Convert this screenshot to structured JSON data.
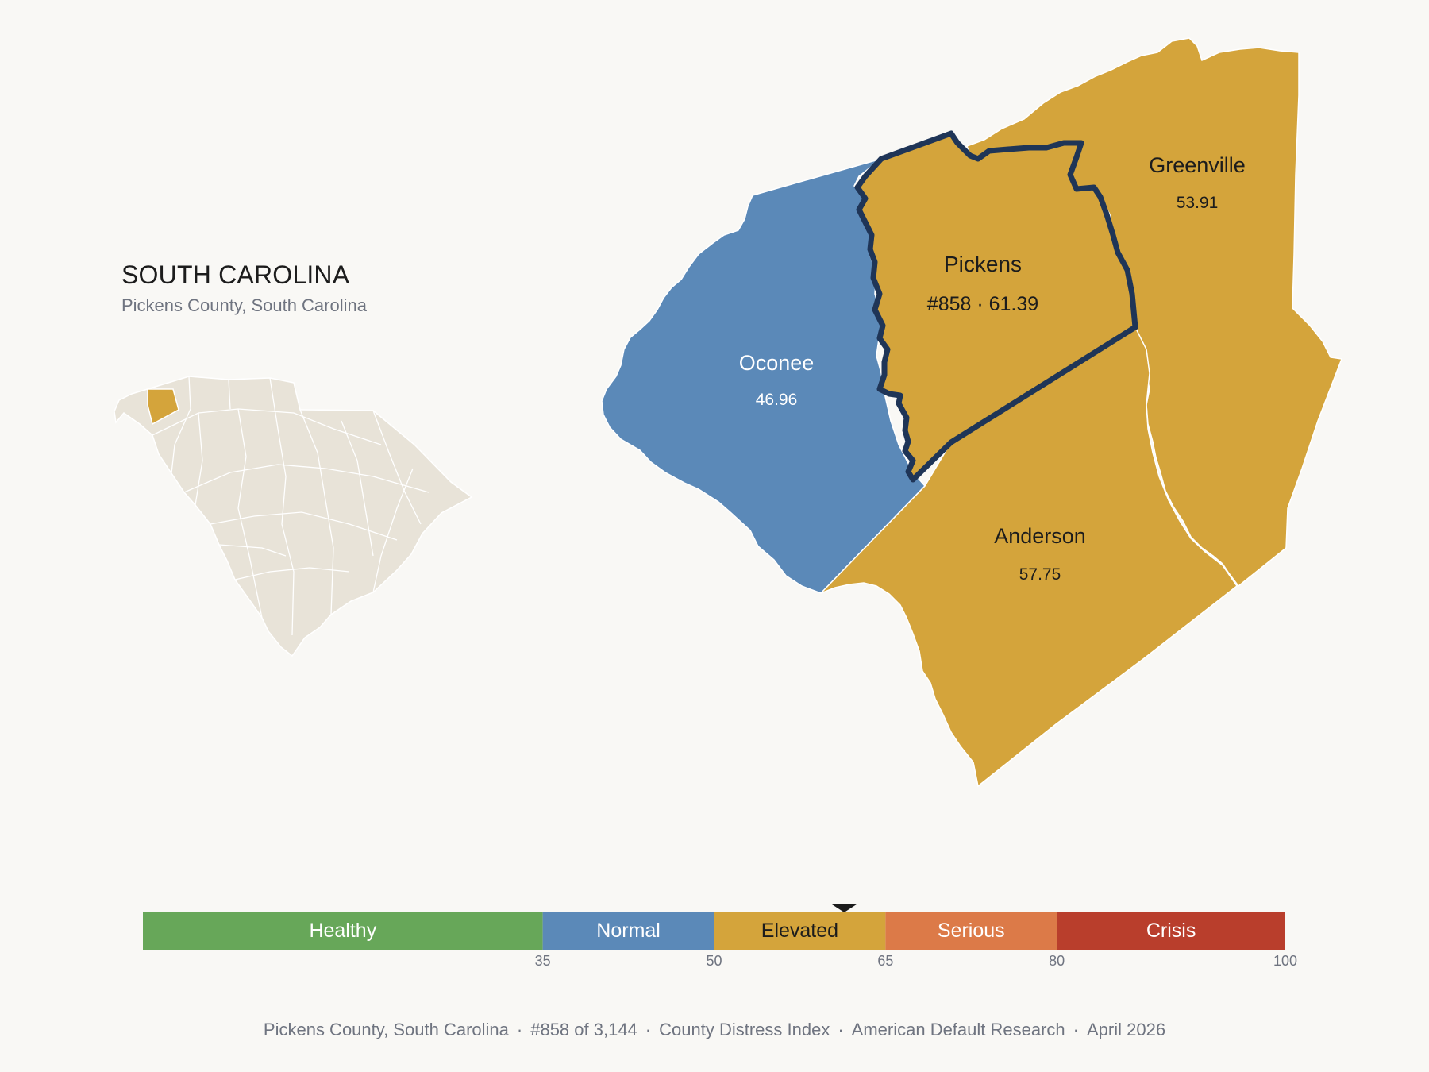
{
  "header": {
    "state_title": "SOUTH CAROLINA",
    "subtitle": "Pickens County, South Carolina"
  },
  "colors": {
    "background": "#f9f8f5",
    "inset_fill": "#e8e3d8",
    "normal": "#5b89b8",
    "elevated": "#d4a43b",
    "healthy": "#67a759",
    "serious": "#dc7a48",
    "crisis": "#b93e2c",
    "highlight_outline": "#1f3557"
  },
  "map": {
    "counties": [
      {
        "name": "Oconee",
        "score": "46.96",
        "category": "Normal"
      },
      {
        "name": "Pickens",
        "score": "61.39",
        "rank_label": "#858 · 61.39",
        "category": "Elevated",
        "highlighted": true
      },
      {
        "name": "Greenville",
        "score": "53.91",
        "category": "Elevated"
      },
      {
        "name": "Anderson",
        "score": "57.75",
        "category": "Elevated"
      }
    ]
  },
  "legend": {
    "bands": [
      {
        "label": "Healthy",
        "from": 0,
        "to": 35
      },
      {
        "label": "Normal",
        "from": 35,
        "to": 50
      },
      {
        "label": "Elevated",
        "from": 50,
        "to": 65
      },
      {
        "label": "Serious",
        "from": 65,
        "to": 80
      },
      {
        "label": "Crisis",
        "from": 80,
        "to": 100
      }
    ],
    "ticks": [
      "35",
      "50",
      "65",
      "80",
      "100"
    ],
    "marker_value": 61.39
  },
  "footer": {
    "county": "Pickens County, South Carolina",
    "rank": "#858 of 3,144",
    "index": "County Distress Index",
    "source": "American Default Research",
    "date": "April 2026"
  }
}
